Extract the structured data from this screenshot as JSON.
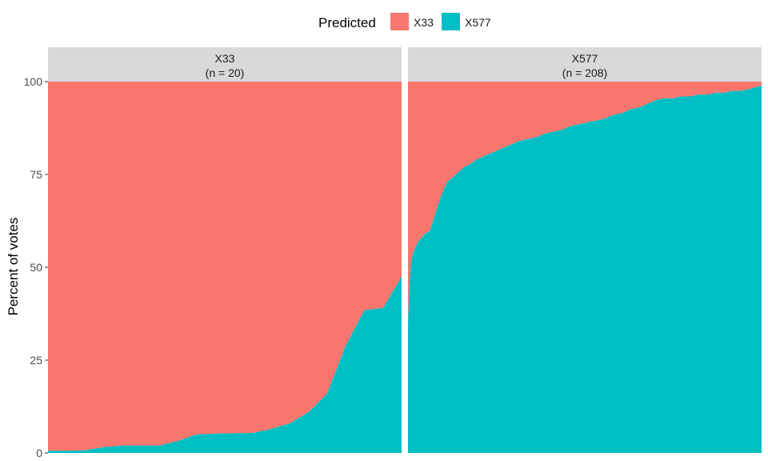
{
  "chart_data": {
    "type": "area",
    "stacked": true,
    "legend": {
      "title": "Predicted",
      "position": "top",
      "entries": [
        {
          "label": "X33",
          "color": "#F8766D"
        },
        {
          "label": "X577",
          "color": "#00BFC4"
        }
      ]
    },
    "ylabel": "Percent of votes",
    "xlabel": "",
    "ylim": [
      0,
      100
    ],
    "yticks": [
      "0",
      "25",
      "50",
      "75",
      "100"
    ],
    "grid": false,
    "panels": [
      {
        "strip_title": "X33",
        "strip_subtitle": "(n = 20)",
        "x": [
          1,
          2,
          3,
          4,
          5,
          6,
          7,
          8,
          9,
          10,
          11,
          12,
          13,
          14,
          15,
          16,
          17,
          18,
          19,
          20
        ],
        "series": [
          {
            "name": "X33",
            "color": "#F8766D",
            "values": [
              99.4,
              99.4,
              99.3,
              98.4,
              98.0,
              98.0,
              98.0,
              96.7,
              95.0,
              94.8,
              94.7,
              94.6,
              93.5,
              92.0,
              89.0,
              84.0,
              71.0,
              61.5,
              61.0,
              52.5
            ]
          },
          {
            "name": "X577",
            "color": "#00BFC4",
            "values": [
              0.6,
              0.6,
              0.7,
              1.6,
              2.0,
              2.0,
              2.0,
              3.3,
              5.0,
              5.2,
              5.3,
              5.4,
              6.5,
              8.0,
              11.0,
              16.0,
              29.0,
              38.5,
              39.0,
              47.5
            ]
          }
        ]
      },
      {
        "strip_title": "X577",
        "strip_subtitle": "(n = 208)",
        "x_profile": [
          0,
          1,
          2,
          3,
          4,
          5,
          6,
          8,
          10,
          13,
          17,
          20,
          23,
          28,
          33,
          37,
          40,
          45,
          50,
          55,
          60,
          65,
          70,
          75,
          80,
          85,
          90,
          95,
          100,
          105,
          110,
          115,
          120,
          125,
          130,
          135,
          140,
          145,
          150,
          155,
          160,
          165,
          170,
          175,
          180,
          185,
          190,
          195,
          200,
          207
        ],
        "series": [
          {
            "name": "X33",
            "color": "#F8766D",
            "values_note": "complement of X577"
          },
          {
            "name": "X577",
            "color": "#00BFC4",
            "values": [
              35,
              47,
              52,
              54,
              55,
              56,
              57,
              58,
              59,
              60,
              66,
              70,
              73,
              75,
              77,
              78,
              79,
              80,
              81,
              82,
              83,
              84,
              84.5,
              85,
              86,
              86.5,
              87,
              88,
              88.5,
              89,
              89.5,
              90,
              91,
              91.5,
              92.5,
              93,
              94,
              95,
              95.5,
              95.5,
              96,
              96,
              96.5,
              96.5,
              97,
              97,
              97.5,
              97.5,
              98,
              99
            ]
          }
        ]
      }
    ]
  }
}
